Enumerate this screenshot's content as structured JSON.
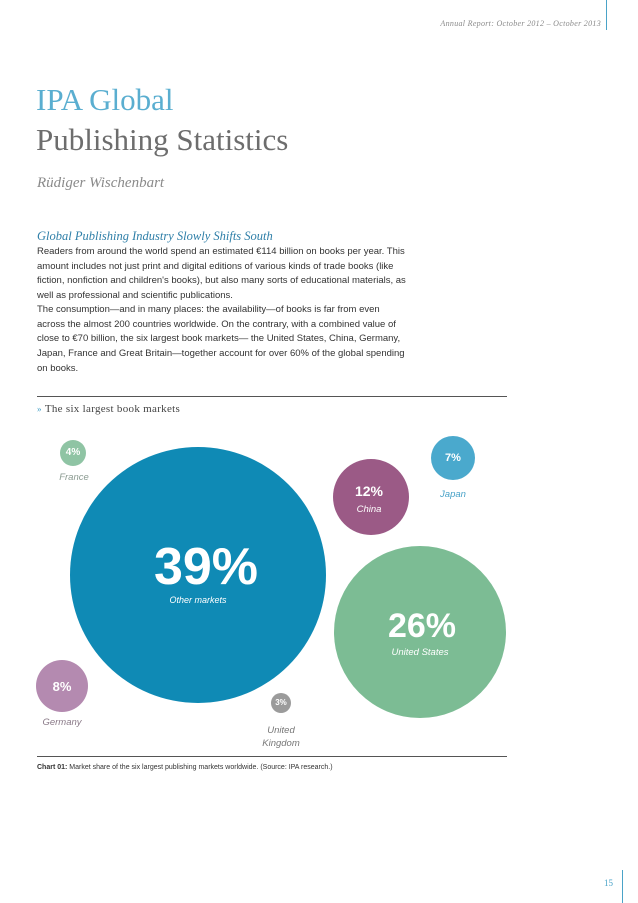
{
  "header": {
    "running_title": "Annual Report: October 2012 – October 2013"
  },
  "title": {
    "line1": "IPA Global",
    "line2": "Publishing Statistics"
  },
  "author": "Rüdiger Wischenbart",
  "section": {
    "heading": "Global Publishing Industry Slowly Shifts South",
    "paragraphs": [
      "Readers from around the world spend an estimated €114 billion on books per year. This amount includes not just print and digital editions of various kinds of trade books (like fiction, nonfiction and children's books), but also many sorts of educational materials, as well as professional and scientific publications.",
      "The consumption—and in many places: the availability—of books is far from even across the almost 200 countries worldwide. On the contrary, with a combined value of close to €70 billion, the six largest book markets— the United States, China, Germany, Japan, France and Great Britain—together account for over 60% of the global spending on books."
    ]
  },
  "chart": {
    "marker": "»",
    "title": "The six largest book markets",
    "caption_label": "Chart 01:",
    "caption_text": " Market share of the six largest publishing markets worldwide. (Source: IPA research.)"
  },
  "chart_data": {
    "type": "bubble",
    "title": "The six largest book markets",
    "unit": "%",
    "series": [
      {
        "name": "Other markets",
        "value": 39,
        "label": "39%",
        "color": "#0f8ab5"
      },
      {
        "name": "United States",
        "value": 26,
        "label": "26%",
        "color": "#7cbc94"
      },
      {
        "name": "China",
        "value": 12,
        "label": "12%",
        "color": "#9b5a86"
      },
      {
        "name": "Germany",
        "value": 8,
        "label": "8%",
        "color": "#b48ab0"
      },
      {
        "name": "Japan",
        "value": 7,
        "label": "7%",
        "color": "#4aa9cd"
      },
      {
        "name": "France",
        "value": 4,
        "label": "4%",
        "color": "#8fc4a4"
      },
      {
        "name": "United Kingdom",
        "value": 3,
        "label": "3%",
        "color": "#9b9b9b"
      }
    ],
    "label_colors": {
      "France": "#8a9a90",
      "Japan": "#4aa3c8",
      "China": "#ffffff",
      "Other markets": "#ffffff",
      "United States": "#ffffff",
      "Germany": "#8a7a88",
      "United Kingdom": "#777777"
    },
    "display_names": {
      "France": "France",
      "Japan": "Japan",
      "China": "China",
      "Other markets": "Other markets",
      "United States": "United States",
      "Germany": "Germany",
      "United Kingdom": [
        "United",
        "Kingdom"
      ]
    }
  },
  "page_number": "15"
}
